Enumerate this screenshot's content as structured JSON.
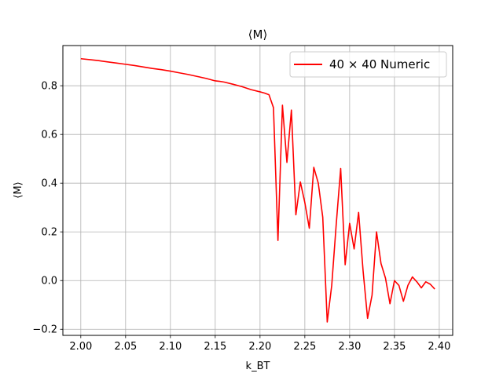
{
  "chart_data": {
    "type": "line",
    "title": "⟨M⟩",
    "xlabel": "k_BT",
    "ylabel": "⟨M⟩",
    "xlim": [
      1.98,
      2.415
    ],
    "ylim": [
      -0.225,
      0.965
    ],
    "grid": true,
    "legend_position": "top-right",
    "xticks": [
      2.0,
      2.05,
      2.1,
      2.15,
      2.2,
      2.25,
      2.3,
      2.35,
      2.4
    ],
    "xtick_labels": [
      "2.00",
      "2.05",
      "2.10",
      "2.15",
      "2.20",
      "2.25",
      "2.30",
      "2.35",
      "2.40"
    ],
    "yticks": [
      -0.2,
      0.0,
      0.2,
      0.4,
      0.6,
      0.8
    ],
    "ytick_labels": [
      "−0.2",
      "0.0",
      "0.2",
      "0.4",
      "0.6",
      "0.8"
    ],
    "series": [
      {
        "name": "40 × 40 Numeric",
        "color": "#ff0000",
        "x": [
          2.0,
          2.01,
          2.02,
          2.03,
          2.04,
          2.05,
          2.06,
          2.07,
          2.08,
          2.09,
          2.1,
          2.11,
          2.12,
          2.13,
          2.14,
          2.15,
          2.155,
          2.16,
          2.17,
          2.18,
          2.19,
          2.2,
          2.205,
          2.21,
          2.215,
          2.22,
          2.225,
          2.23,
          2.235,
          2.24,
          2.245,
          2.25,
          2.255,
          2.26,
          2.265,
          2.27,
          2.275,
          2.28,
          2.285,
          2.29,
          2.295,
          2.3,
          2.305,
          2.31,
          2.315,
          2.32,
          2.325,
          2.33,
          2.335,
          2.34,
          2.345,
          2.35,
          2.355,
          2.36,
          2.365,
          2.37,
          2.375,
          2.38,
          2.385,
          2.39,
          2.395
        ],
        "y": [
          0.911,
          0.907,
          0.903,
          0.898,
          0.893,
          0.888,
          0.883,
          0.877,
          0.871,
          0.866,
          0.86,
          0.853,
          0.846,
          0.838,
          0.83,
          0.82,
          0.818,
          0.815,
          0.806,
          0.796,
          0.784,
          0.775,
          0.77,
          0.763,
          0.71,
          0.165,
          0.72,
          0.485,
          0.7,
          0.27,
          0.405,
          0.32,
          0.215,
          0.465,
          0.4,
          0.26,
          -0.17,
          -0.02,
          0.23,
          0.46,
          0.065,
          0.235,
          0.13,
          0.28,
          0.04,
          -0.155,
          -0.06,
          0.2,
          0.07,
          0.01,
          -0.095,
          0.0,
          -0.02,
          -0.085,
          -0.02,
          0.015,
          -0.005,
          -0.03,
          -0.005,
          -0.015,
          -0.035
        ]
      }
    ]
  }
}
